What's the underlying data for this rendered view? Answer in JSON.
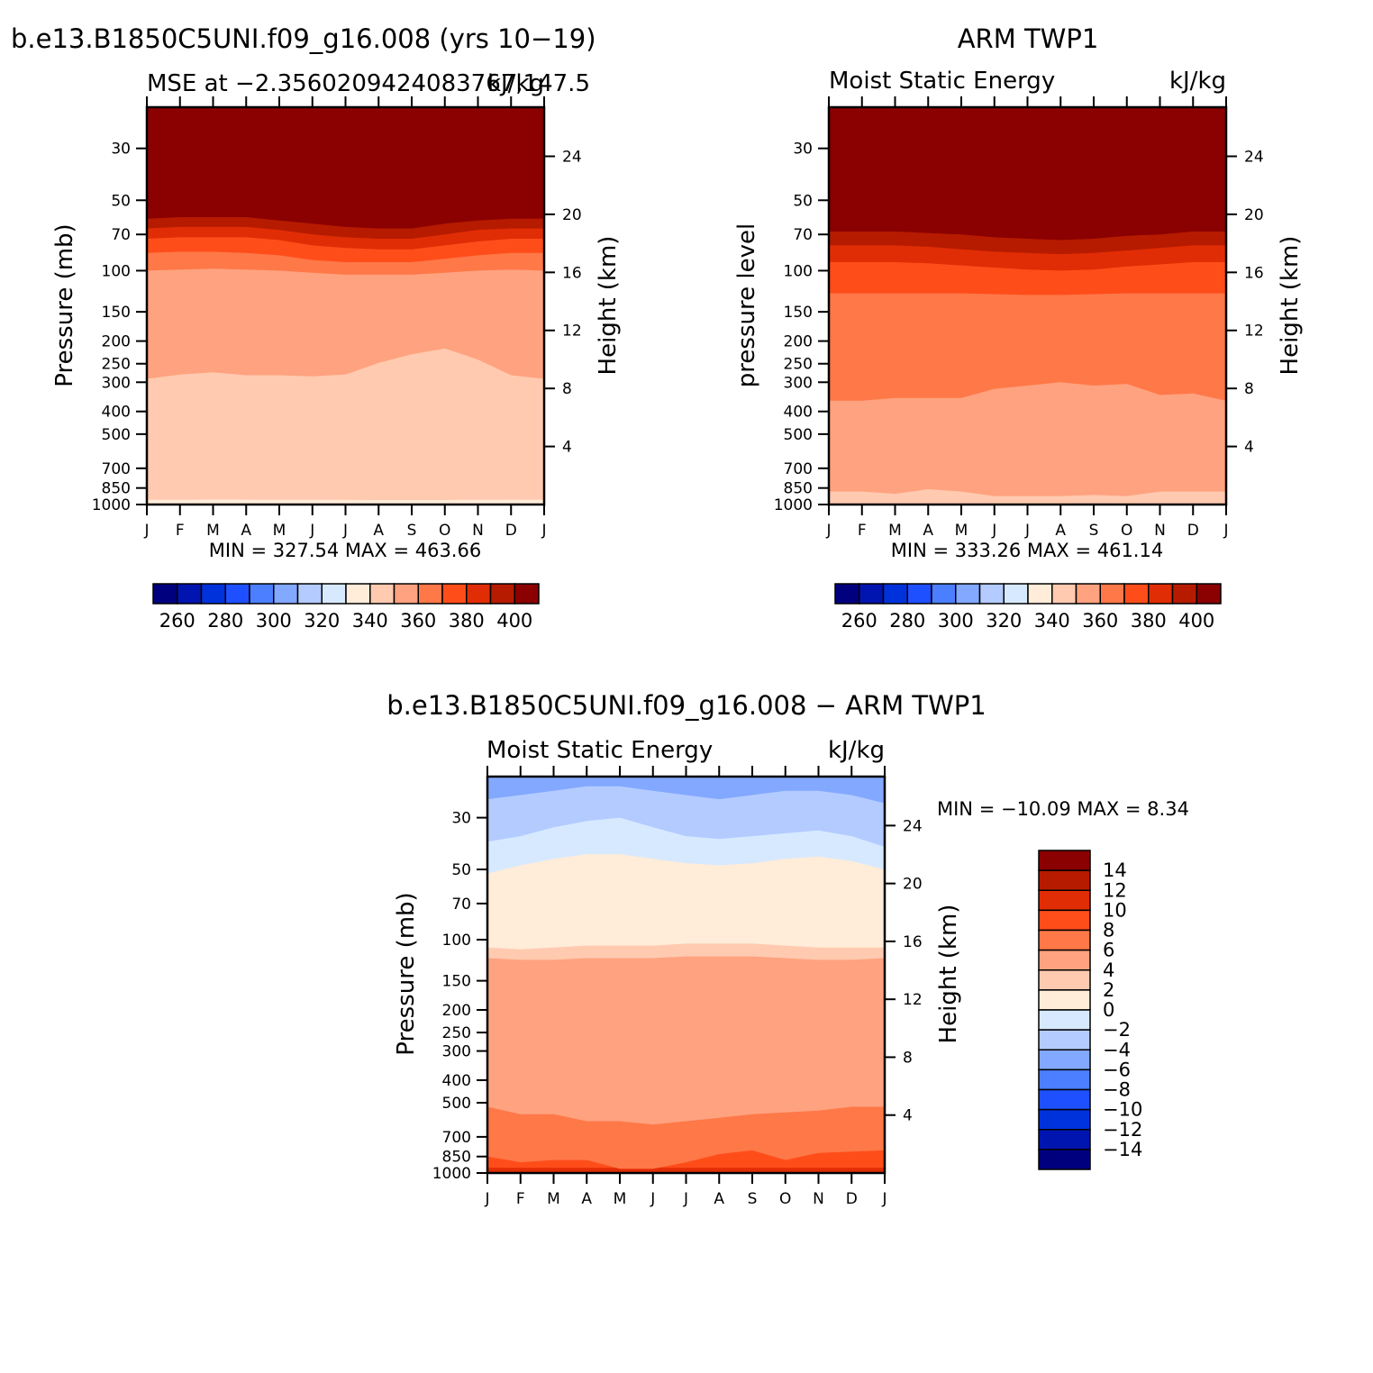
{
  "chart_data": [
    {
      "type": "heatmap",
      "title": "b.e13.B1850C5UNI.f09_g16.008 (yrs 10-19)",
      "subtitle_left": "MSE at -2.3560209424083767,147.5",
      "subtitle_right": "kJ/kg",
      "ylabel": "Pressure (mb)",
      "ylabel_right": "Height (km)",
      "x": [
        "J",
        "F",
        "M",
        "A",
        "M",
        "J",
        "J",
        "A",
        "S",
        "O",
        "N",
        "D",
        "J"
      ],
      "y_ticks": [
        30,
        50,
        70,
        100,
        150,
        200,
        250,
        300,
        400,
        500,
        700,
        850,
        1000
      ],
      "y_right_ticks": [
        24,
        20,
        16,
        12,
        8,
        4
      ],
      "yscale": "log",
      "ylim": [
        1000,
        20
      ],
      "stats_text": "MIN = 327.54 MAX = 463.66",
      "colorbar": {
        "orientation": "horizontal",
        "labels": [
          260,
          280,
          300,
          320,
          340,
          360,
          380,
          400
        ],
        "colors": [
          "#00007f",
          "#0015af",
          "#0032dc",
          "#1e50ff",
          "#4b7fff",
          "#82a8ff",
          "#b3cbff",
          "#d7e9ff",
          "#ffecd9",
          "#ffcab0",
          "#ffa27f",
          "#ff7848",
          "#ff4d1a",
          "#e12d05",
          "#b61b00",
          "#8b0000"
        ]
      },
      "contour_levels": [
        330,
        340,
        350,
        360,
        370,
        380,
        390,
        400
      ],
      "contour_pressures": [
        [
          955,
          954,
          952,
          953,
          954,
          955,
          956,
          957,
          957,
          957,
          955,
          953,
          955
        ],
        [
          290,
          278,
          272,
          280,
          280,
          283,
          278,
          248,
          228,
          215,
          240,
          280,
          290
        ],
        [
          100,
          99,
          98,
          99,
          100,
          102,
          104,
          104,
          104,
          102,
          100,
          99,
          100
        ],
        [
          84,
          83,
          83,
          84,
          86,
          90,
          92,
          92,
          92,
          89,
          86,
          84,
          84
        ],
        [
          73,
          72,
          72,
          72,
          74,
          78,
          80,
          81,
          81,
          78,
          75,
          73,
          73
        ],
        [
          66,
          65,
          65,
          65,
          67,
          70,
          72,
          73,
          73,
          70,
          67,
          66,
          66
        ],
        [
          60,
          59,
          59,
          59,
          61,
          63,
          65,
          66,
          66,
          63,
          61,
          60,
          60
        ],
        [
          55,
          54,
          54,
          54,
          55,
          57,
          59,
          59,
          59,
          57,
          56,
          55,
          55
        ]
      ]
    },
    {
      "type": "heatmap",
      "title": "ARM TWP1",
      "subtitle_left": "Moist Static Energy",
      "subtitle_right": "kJ/kg",
      "ylabel": "pressure level",
      "ylabel_right": "Height (km)",
      "x": [
        "J",
        "F",
        "M",
        "A",
        "M",
        "J",
        "J",
        "A",
        "S",
        "O",
        "N",
        "D",
        "J"
      ],
      "y_ticks": [
        30,
        50,
        70,
        100,
        150,
        200,
        250,
        300,
        400,
        500,
        700,
        850,
        1000
      ],
      "y_right_ticks": [
        24,
        20,
        16,
        12,
        8,
        4
      ],
      "yscale": "log",
      "ylim": [
        1000,
        20
      ],
      "stats_text": "MIN = 333.26 MAX = 461.14",
      "colorbar": {
        "orientation": "horizontal",
        "labels": [
          260,
          280,
          300,
          320,
          340,
          360,
          380,
          400
        ],
        "colors": [
          "#00007f",
          "#0015af",
          "#0032dc",
          "#1e50ff",
          "#4b7fff",
          "#82a8ff",
          "#b3cbff",
          "#d7e9ff",
          "#ffecd9",
          "#ffcab0",
          "#ffa27f",
          "#ff7848",
          "#ff4d1a",
          "#e12d05",
          "#b61b00",
          "#8b0000"
        ]
      },
      "contour_levels": [
        340,
        350,
        360,
        370,
        380,
        390,
        400
      ],
      "contour_pressures": [
        [
          880,
          880,
          900,
          860,
          880,
          920,
          920,
          920,
          910,
          920,
          880,
          880,
          880
        ],
        [
          360,
          360,
          350,
          350,
          350,
          320,
          310,
          300,
          310,
          305,
          340,
          335,
          360
        ],
        [
          125,
          125,
          125,
          125,
          125,
          126,
          127,
          127,
          126,
          125,
          125,
          125,
          125
        ],
        [
          92,
          92,
          92,
          93,
          95,
          97,
          99,
          100,
          99,
          96,
          94,
          92,
          92
        ],
        [
          78,
          78,
          78,
          79,
          81,
          83,
          84,
          85,
          84,
          82,
          80,
          78,
          78
        ],
        [
          68,
          68,
          68,
          69,
          70,
          72,
          73,
          74,
          73,
          71,
          70,
          68,
          68
        ],
        [
          60,
          60,
          60,
          61,
          62,
          63,
          64,
          65,
          64,
          62,
          61,
          60,
          60
        ]
      ]
    },
    {
      "type": "heatmap",
      "title": "b.e13.B1850C5UNI.f09_g16.008 - ARM TWP1",
      "subtitle_left": "Moist Static Energy",
      "subtitle_right": "kJ/kg",
      "ylabel": "Pressure (mb)",
      "ylabel_right": "Height (km)",
      "x": [
        "J",
        "F",
        "M",
        "A",
        "M",
        "J",
        "J",
        "A",
        "S",
        "O",
        "N",
        "D",
        "J"
      ],
      "y_ticks": [
        30,
        50,
        70,
        100,
        150,
        200,
        250,
        300,
        400,
        500,
        700,
        850,
        1000
      ],
      "y_right_ticks": [
        24,
        20,
        16,
        12,
        8,
        4
      ],
      "yscale": "log",
      "ylim": [
        1000,
        20
      ],
      "stats_text": "MIN = -10.09 MAX =    8.34",
      "colorbar": {
        "orientation": "vertical",
        "labels": [
          14,
          12,
          10,
          8,
          6,
          4,
          2,
          0,
          -2,
          -4,
          -6,
          -8,
          -10,
          -12,
          -14
        ],
        "colors": [
          "#8b0000",
          "#b61b00",
          "#e12d05",
          "#ff4d1a",
          "#ff7848",
          "#ffa27f",
          "#ffcab0",
          "#ffecd9",
          "#d7e9ff",
          "#b3cbff",
          "#82a8ff",
          "#4b7fff",
          "#1e50ff",
          "#0032dc",
          "#0015af",
          "#00007f"
        ]
      },
      "contour_levels": [
        -10,
        -8,
        -6,
        -4,
        -2,
        0,
        2,
        4
      ],
      "contour_pressures": [
        [
          950,
          950,
          950,
          950,
          950,
          950,
          950,
          950,
          950,
          950,
          950,
          950,
          950
        ],
        [
          850,
          900,
          880,
          880,
          960,
          960,
          900,
          830,
          800,
          880,
          820,
          810,
          800
        ],
        [
          520,
          560,
          560,
          600,
          600,
          620,
          600,
          580,
          560,
          550,
          540,
          520,
          520
        ],
        [
          120,
          122,
          122,
          120,
          120,
          120,
          118,
          118,
          118,
          120,
          122,
          122,
          120
        ],
        [
          108,
          110,
          108,
          106,
          106,
          106,
          104,
          104,
          104,
          106,
          108,
          108,
          108
        ],
        [
          52,
          48,
          45,
          43,
          43,
          45,
          47,
          48,
          47,
          45,
          44,
          46,
          50
        ],
        [
          38,
          36,
          33,
          31,
          30,
          33,
          36,
          37,
          36,
          35,
          34,
          36,
          40
        ],
        [
          25,
          24,
          23,
          22,
          22,
          23,
          24,
          25,
          24,
          23,
          23,
          24,
          26
        ]
      ]
    }
  ]
}
